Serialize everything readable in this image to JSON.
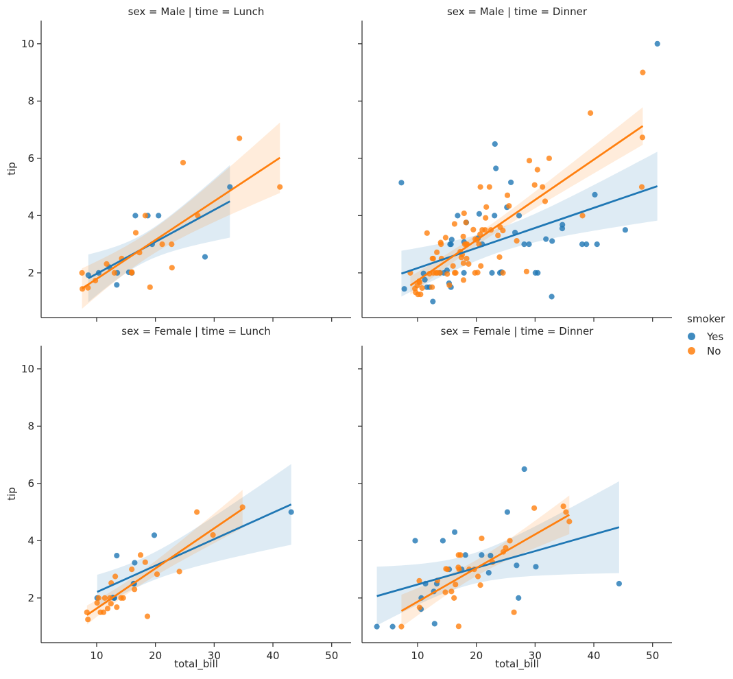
{
  "figure": {
    "xlabel": "total_bill",
    "ylabel": "tip",
    "xticks": [
      10,
      20,
      30,
      40,
      50
    ],
    "yticks": [
      2,
      4,
      6,
      8,
      10
    ],
    "xlim": [
      0.55,
      53.3
    ],
    "ylim": [
      0.44,
      10.81
    ],
    "background": "#ffffff",
    "spine_color": "#262626",
    "legend": {
      "title": "smoker",
      "entries": [
        {
          "label": "Yes",
          "color": "#1f77b4"
        },
        {
          "label": "No",
          "color": "#ff7f0e"
        }
      ]
    }
  },
  "chart_data": [
    {
      "type": "scatter",
      "id": "male-lunch",
      "title": "sex = Male | time = Lunch",
      "xlabel": "total_bill",
      "ylabel": "tip",
      "regression": true,
      "ci": 95,
      "series": [
        {
          "name": "Yes",
          "color": "#1f77b4",
          "points": [
            [
              19.44,
              3.0
            ],
            [
              32.68,
              5.0
            ],
            [
              16.0,
              2.0
            ],
            [
              28.44,
              2.56
            ],
            [
              15.48,
              2.02
            ],
            [
              16.58,
              4.0
            ],
            [
              10.34,
              2.0
            ],
            [
              13.51,
              2.0
            ],
            [
              18.71,
              4.0
            ],
            [
              20.53,
              4.0
            ],
            [
              12.16,
              2.2
            ],
            [
              8.58,
              1.92
            ],
            [
              13.42,
              1.58
            ]
          ]
        },
        {
          "name": "No",
          "color": "#ff7f0e",
          "points": [
            [
              27.2,
              4.0
            ],
            [
              22.76,
              3.0
            ],
            [
              17.29,
              2.71
            ],
            [
              16.66,
              3.4
            ],
            [
              15.98,
              2.03
            ],
            [
              13.03,
              2.0
            ],
            [
              18.28,
              4.0
            ],
            [
              24.71,
              5.85
            ],
            [
              21.16,
              3.0
            ],
            [
              11.69,
              2.31
            ],
            [
              14.26,
              2.5
            ],
            [
              15.95,
              2.0
            ],
            [
              8.52,
              1.48
            ],
            [
              22.82,
              2.18
            ],
            [
              19.08,
              1.5
            ],
            [
              34.3,
              6.7
            ],
            [
              41.19,
              5.0
            ],
            [
              9.78,
              1.73
            ],
            [
              7.51,
              2.0
            ],
            [
              7.56,
              1.44
            ]
          ]
        }
      ]
    },
    {
      "type": "scatter",
      "id": "male-dinner",
      "title": "sex = Male | time = Dinner",
      "xlabel": "total_bill",
      "ylabel": "tip",
      "regression": true,
      "ci": 95,
      "series": [
        {
          "name": "Yes",
          "color": "#1f77b4",
          "points": [
            [
              38.01,
              3.0
            ],
            [
              11.24,
              1.76
            ],
            [
              20.29,
              3.21
            ],
            [
              13.81,
              2.0
            ],
            [
              11.02,
              1.98
            ],
            [
              18.29,
              3.76
            ],
            [
              15.01,
              2.09
            ],
            [
              17.92,
              3.08
            ],
            [
              15.36,
              1.64
            ],
            [
              20.49,
              4.06
            ],
            [
              25.21,
              4.29
            ],
            [
              50.81,
              10.0
            ],
            [
              15.81,
              3.16
            ],
            [
              26.59,
              3.41
            ],
            [
              38.73,
              3.0
            ],
            [
              24.27,
              2.03
            ],
            [
              30.06,
              2.0
            ],
            [
              25.89,
              5.16
            ],
            [
              28.15,
              3.0
            ],
            [
              11.59,
              1.5
            ],
            [
              7.74,
              1.44
            ],
            [
              24.01,
              2.0
            ],
            [
              15.69,
              3.0
            ],
            [
              15.53,
              3.0
            ],
            [
              12.6,
              1.0
            ],
            [
              32.83,
              1.17
            ],
            [
              22.67,
              2.0
            ],
            [
              28.97,
              3.0
            ],
            [
              40.17,
              4.73
            ],
            [
              27.28,
              4.0
            ],
            [
              12.03,
              1.5
            ],
            [
              21.01,
              3.0
            ],
            [
              7.25,
              5.15
            ],
            [
              31.85,
              3.18
            ],
            [
              16.82,
              4.0
            ],
            [
              32.9,
              3.11
            ],
            [
              17.89,
              2.0
            ],
            [
              14.48,
              2.0
            ],
            [
              34.63,
              3.55
            ],
            [
              34.65,
              3.68
            ],
            [
              23.33,
              5.65
            ],
            [
              45.35,
              3.5
            ],
            [
              23.17,
              6.5
            ],
            [
              40.55,
              3.0
            ],
            [
              30.46,
              2.0
            ],
            [
              23.1,
              4.0
            ],
            [
              15.69,
              1.5
            ]
          ]
        },
        {
          "name": "No",
          "color": "#ff7f0e",
          "points": [
            [
              10.34,
              1.66
            ],
            [
              21.01,
              3.5
            ],
            [
              23.68,
              3.31
            ],
            [
              25.29,
              4.71
            ],
            [
              8.77,
              2.0
            ],
            [
              26.88,
              3.12
            ],
            [
              15.04,
              1.96
            ],
            [
              14.78,
              3.23
            ],
            [
              10.27,
              1.71
            ],
            [
              15.42,
              1.57
            ],
            [
              18.43,
              3.0
            ],
            [
              21.58,
              3.92
            ],
            [
              16.29,
              3.71
            ],
            [
              17.46,
              2.54
            ],
            [
              13.94,
              3.06
            ],
            [
              9.68,
              1.32
            ],
            [
              30.4,
              5.6
            ],
            [
              18.29,
              3.0
            ],
            [
              22.23,
              5.0
            ],
            [
              32.4,
              6.0
            ],
            [
              28.55,
              2.05
            ],
            [
              18.04,
              3.0
            ],
            [
              12.54,
              2.5
            ],
            [
              9.94,
              1.56
            ],
            [
              25.56,
              4.34
            ],
            [
              19.49,
              3.51
            ],
            [
              38.07,
              4.0
            ],
            [
              23.95,
              2.55
            ],
            [
              29.93,
              5.07
            ],
            [
              14.07,
              2.5
            ],
            [
              13.13,
              2.0
            ],
            [
              17.26,
              2.74
            ],
            [
              24.55,
              2.0
            ],
            [
              19.77,
              2.0
            ],
            [
              48.17,
              5.0
            ],
            [
              16.49,
              2.0
            ],
            [
              21.5,
              3.5
            ],
            [
              12.66,
              2.5
            ],
            [
              13.81,
              2.0
            ],
            [
              24.52,
              3.48
            ],
            [
              20.76,
              2.24
            ],
            [
              31.71,
              4.5
            ],
            [
              20.69,
              5.0
            ],
            [
              20.65,
              3.35
            ],
            [
              17.92,
              4.08
            ],
            [
              39.42,
              7.58
            ],
            [
              19.82,
              3.18
            ],
            [
              17.81,
              2.34
            ],
            [
              13.37,
              2.0
            ],
            [
              12.69,
              2.0
            ],
            [
              21.7,
              4.3
            ],
            [
              9.55,
              1.45
            ],
            [
              18.35,
              2.5
            ],
            [
              17.78,
              3.27
            ],
            [
              24.06,
              3.6
            ],
            [
              16.31,
              2.0
            ],
            [
              18.69,
              2.31
            ],
            [
              31.27,
              5.0
            ],
            [
              16.04,
              2.24
            ],
            [
              48.27,
              6.73
            ],
            [
              17.59,
              2.64
            ],
            [
              20.08,
              3.15
            ],
            [
              20.23,
              2.01
            ],
            [
              12.02,
              1.97
            ],
            [
              10.51,
              1.25
            ],
            [
              18.24,
              3.76
            ],
            [
              14.0,
              3.0
            ],
            [
              20.45,
              3.0
            ],
            [
              13.28,
              2.72
            ],
            [
              11.61,
              3.39
            ],
            [
              10.77,
              1.47
            ],
            [
              10.07,
              1.25
            ],
            [
              29.03,
              5.92
            ],
            [
              17.82,
              1.75
            ],
            [
              48.33,
              9.0
            ],
            [
              22.49,
              3.5
            ],
            [
              12.46,
              1.5
            ]
          ]
        }
      ]
    },
    {
      "type": "scatter",
      "id": "female-lunch",
      "title": "sex = Female | time = Lunch",
      "xlabel": "total_bill",
      "ylabel": "tip",
      "regression": true,
      "ci": 95,
      "series": [
        {
          "name": "Yes",
          "color": "#1f77b4",
          "points": [
            [
              19.81,
              4.19
            ],
            [
              43.11,
              5.0
            ],
            [
              13.0,
              2.0
            ],
            [
              12.74,
              2.01
            ],
            [
              13.0,
              2.0
            ],
            [
              16.4,
              2.5
            ],
            [
              16.47,
              3.23
            ],
            [
              13.42,
              3.48
            ],
            [
              16.27,
              2.5
            ],
            [
              10.09,
              2.0
            ]
          ]
        },
        {
          "name": "No",
          "color": "#ff7f0e",
          "points": [
            [
              10.07,
              1.83
            ],
            [
              34.83,
              5.17
            ],
            [
              10.65,
              1.5
            ],
            [
              12.43,
              1.8
            ],
            [
              24.08,
              2.92
            ],
            [
              13.42,
              1.68
            ],
            [
              12.48,
              2.52
            ],
            [
              29.8,
              4.2
            ],
            [
              14.52,
              2.0
            ],
            [
              11.38,
              2.0
            ],
            [
              20.27,
              2.83
            ],
            [
              11.17,
              1.5
            ],
            [
              12.26,
              2.0
            ],
            [
              18.26,
              3.25
            ],
            [
              8.51,
              1.25
            ],
            [
              10.33,
              2.0
            ],
            [
              14.15,
              2.0
            ],
            [
              13.16,
              2.75
            ],
            [
              17.47,
              3.5
            ],
            [
              27.05,
              5.0
            ],
            [
              16.43,
              2.3
            ],
            [
              8.35,
              1.5
            ],
            [
              18.64,
              1.36
            ],
            [
              11.87,
              1.63
            ],
            [
              15.98,
              3.0
            ]
          ]
        }
      ]
    },
    {
      "type": "scatter",
      "id": "female-dinner",
      "title": "sex = Female | time = Dinner",
      "xlabel": "total_bill",
      "ylabel": "tip",
      "regression": true,
      "ci": 95,
      "series": [
        {
          "name": "Yes",
          "color": "#1f77b4",
          "points": [
            [
              3.07,
              1.0
            ],
            [
              26.86,
              3.14
            ],
            [
              25.28,
              5.0
            ],
            [
              5.75,
              1.0
            ],
            [
              16.32,
              4.3
            ],
            [
              11.35,
              2.5
            ],
            [
              15.38,
              3.0
            ],
            [
              44.3,
              2.5
            ],
            [
              22.42,
              3.48
            ],
            [
              14.31,
              4.0
            ],
            [
              17.51,
              3.0
            ],
            [
              10.59,
              1.61
            ],
            [
              10.63,
              2.0
            ],
            [
              9.6,
              4.0
            ],
            [
              20.9,
              3.5
            ],
            [
              18.15,
              3.5
            ],
            [
              12.76,
              2.23
            ],
            [
              13.27,
              2.5
            ],
            [
              28.17,
              6.5
            ],
            [
              12.9,
              1.1
            ],
            [
              30.14,
              3.09
            ],
            [
              22.12,
              2.88
            ],
            [
              27.18,
              2.0
            ]
          ]
        },
        {
          "name": "No",
          "color": "#ff7f0e",
          "points": [
            [
              16.99,
              1.01
            ],
            [
              24.59,
              3.61
            ],
            [
              35.26,
              5.0
            ],
            [
              14.83,
              3.02
            ],
            [
              10.33,
              1.67
            ],
            [
              16.97,
              3.5
            ],
            [
              20.29,
              2.75
            ],
            [
              15.77,
              2.23
            ],
            [
              19.65,
              3.0
            ],
            [
              15.06,
              3.0
            ],
            [
              20.69,
              2.45
            ],
            [
              16.93,
              3.07
            ],
            [
              10.29,
              2.6
            ],
            [
              34.81,
              5.2
            ],
            [
              26.41,
              1.5
            ],
            [
              16.45,
              2.47
            ],
            [
              17.07,
              3.0
            ],
            [
              14.73,
              2.2
            ],
            [
              22.75,
              3.25
            ],
            [
              20.92,
              4.08
            ],
            [
              7.25,
              1.0
            ],
            [
              25.71,
              4.0
            ],
            [
              17.31,
              3.5
            ],
            [
              29.85,
              5.14
            ],
            [
              25.0,
              3.75
            ],
            [
              13.39,
              2.61
            ],
            [
              16.21,
              2.0
            ],
            [
              35.83,
              4.67
            ],
            [
              18.78,
              3.0
            ]
          ]
        }
      ]
    }
  ]
}
